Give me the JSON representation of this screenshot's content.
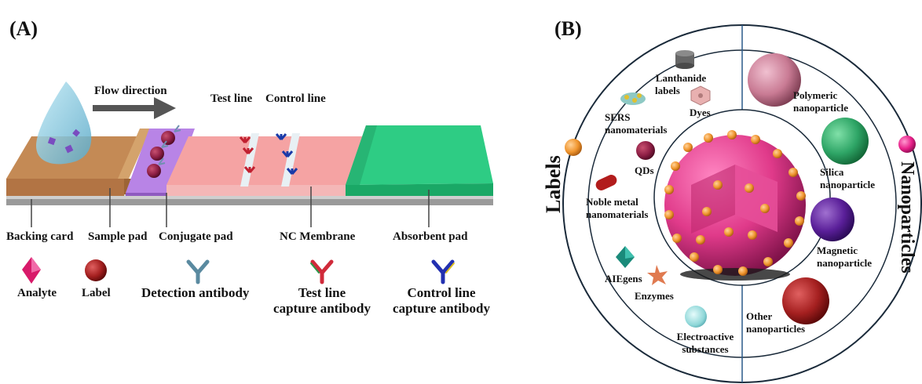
{
  "panel_a": {
    "tag": "(A)",
    "flow_direction": "Flow direction",
    "test_line_top": "Test line",
    "control_line_top": "Control line",
    "components": {
      "backing_card": "Backing card",
      "sample_pad": "Sample pad",
      "conjugate_pad": "Conjugate pad",
      "nc_membrane": "NC Membrane",
      "absorbent_pad": "Absorbent pad"
    },
    "legend": {
      "analyte": "Analyte",
      "label": "Label",
      "detection_antibody": "Detection antibody",
      "test_line_capture_1": "Test line",
      "test_line_capture_2": "capture antibody",
      "control_line_capture_1": "Control line",
      "control_line_capture_2": "capture antibody"
    },
    "colors": {
      "backing": "#c48a55",
      "sample_pad": "#b98a5a",
      "conjugate_pad": "#b884e6",
      "membrane": "#f5a3a3",
      "absorbent": "#2ecc84"
    }
  },
  "panel_b": {
    "tag": "(B)",
    "ring_left": "Labels",
    "ring_right": "Nanoparticles",
    "labels": {
      "lanthanide_1": "Lanthanide",
      "lanthanide_2": "labels",
      "dyes": "Dyes",
      "sers_1": "SERS",
      "sers_2": "nanomaterials",
      "qds": "QDs",
      "noble_1": "Noble metal",
      "noble_2": "nanomaterials",
      "aiegens": "AIEgens",
      "enzymes": "Enzymes",
      "electro_1": "Electroactive",
      "electro_2": "substances"
    },
    "nanoparticles": {
      "polymeric_1": "Polymeric",
      "polymeric_2": "nanoparticle",
      "silica_1": "Silica",
      "silica_2": "nanoparticle",
      "magnetic_1": "Magnetic",
      "magnetic_2": "nanoparticle",
      "other_1": "Other",
      "other_2": "nanoparticles"
    }
  }
}
